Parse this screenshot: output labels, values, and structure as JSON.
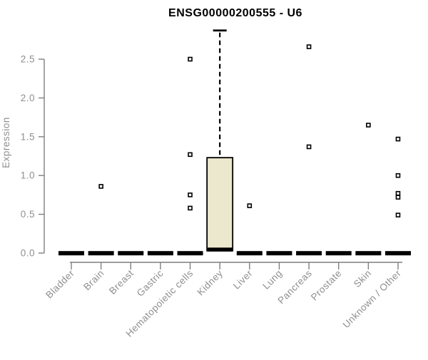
{
  "chart_data": {
    "type": "boxplot",
    "title": "ENSG00000200555 - U6",
    "ylabel": "Expression",
    "xlabel": "",
    "yticks": [
      "0.0",
      "0.5",
      "1.0",
      "1.5",
      "2.0",
      "2.5"
    ],
    "ylim": [
      0,
      2.9
    ],
    "grid": false,
    "legend": "none",
    "categories": [
      "Bladder",
      "Brain",
      "Breast",
      "Gastric",
      "Hematopoietic cells",
      "Kidney",
      "Liver",
      "Lung",
      "Pancreas",
      "Prostate",
      "Skin",
      "Unknown / Other"
    ],
    "boxes": [
      {
        "category": "Bladder",
        "q1": 0,
        "median": 0,
        "q3": 0,
        "whisker_low": 0,
        "whisker_high": 0,
        "outliers": []
      },
      {
        "category": "Brain",
        "q1": 0,
        "median": 0,
        "q3": 0,
        "whisker_low": 0,
        "whisker_high": 0,
        "outliers": [
          0.86
        ]
      },
      {
        "category": "Breast",
        "q1": 0,
        "median": 0,
        "q3": 0,
        "whisker_low": 0,
        "whisker_high": 0,
        "outliers": []
      },
      {
        "category": "Gastric",
        "q1": 0,
        "median": 0,
        "q3": 0,
        "whisker_low": 0,
        "whisker_high": 0,
        "outliers": []
      },
      {
        "category": "Hematopoietic cells",
        "q1": 0,
        "median": 0,
        "q3": 0,
        "whisker_low": 0,
        "whisker_high": 0,
        "outliers": [
          2.5,
          1.27,
          0.75,
          0.58
        ]
      },
      {
        "category": "Kidney",
        "q1": 0.03,
        "median": 0.02,
        "q3": 1.23,
        "whisker_low": 0,
        "whisker_high": 2.87,
        "outliers": []
      },
      {
        "category": "Liver",
        "q1": 0,
        "median": 0,
        "q3": 0,
        "whisker_low": 0,
        "whisker_high": 0,
        "outliers": [
          0.61
        ]
      },
      {
        "category": "Lung",
        "q1": 0,
        "median": 0,
        "q3": 0,
        "whisker_low": 0,
        "whisker_high": 0,
        "outliers": []
      },
      {
        "category": "Pancreas",
        "q1": 0,
        "median": 0,
        "q3": 0,
        "whisker_low": 0,
        "whisker_high": 0,
        "outliers": [
          2.66,
          1.37
        ]
      },
      {
        "category": "Prostate",
        "q1": 0,
        "median": 0,
        "q3": 0,
        "whisker_low": 0,
        "whisker_high": 0,
        "outliers": []
      },
      {
        "category": "Skin",
        "q1": 0,
        "median": 0,
        "q3": 0,
        "whisker_low": 0,
        "whisker_high": 0,
        "outliers": [
          1.65
        ]
      },
      {
        "category": "Unknown / Other",
        "q1": 0,
        "median": 0,
        "q3": 0,
        "whisker_low": 0,
        "whisker_high": 0,
        "outliers": [
          1.47,
          1.0,
          0.77,
          0.72,
          0.49
        ]
      }
    ],
    "colors": {
      "background": "#ffffff",
      "title": "#000000",
      "axis": "#7f7f7f",
      "tick_label": "#8f8f8f",
      "box_fill": "#ece8cd",
      "box_stroke": "#000000",
      "flat_box": "#000000",
      "whisker": "#000000",
      "outlier_stroke": "#000000",
      "outlier_fill": "#ffffff"
    }
  }
}
